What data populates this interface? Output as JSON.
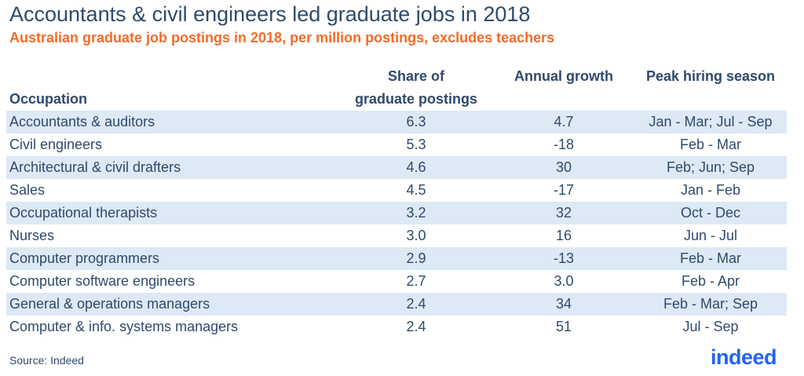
{
  "title": "Accountants & civil engineers led graduate jobs in 2018",
  "subtitle": "Australian graduate job postings in 2018, per million postings, excludes teachers",
  "source": "Source: Indeed",
  "logo": "indeed",
  "colors": {
    "title": "#2f4a6d",
    "subtitle": "#f26b2a",
    "band": "#dde9f5",
    "logo": "#2164f3"
  },
  "chart_data": {
    "type": "table",
    "columns": [
      "Occupation",
      "Share of graduate postings",
      "Annual growth",
      "Peak hiring season"
    ],
    "header_lines": {
      "share_1": "Share of",
      "share_2": "graduate postings"
    },
    "rows": [
      [
        "Accountants & auditors",
        "6.3",
        "4.7",
        "Jan - Mar; Jul - Sep"
      ],
      [
        "Civil engineers",
        "5.3",
        "-18",
        "Feb - Mar"
      ],
      [
        "Architectural & civil drafters",
        "4.6",
        "30",
        "Feb; Jun; Sep"
      ],
      [
        "Sales",
        "4.5",
        "-17",
        "Jan - Feb"
      ],
      [
        "Occupational therapists",
        "3.2",
        "32",
        "Oct - Dec"
      ],
      [
        "Nurses",
        "3.0",
        "16",
        "Jun - Jul"
      ],
      [
        "Computer programmers",
        "2.9",
        "-13",
        "Feb - Mar"
      ],
      [
        "Computer software engineers",
        "2.7",
        "3.0",
        "Feb - Apr"
      ],
      [
        "General & operations managers",
        "2.4",
        "34",
        "Feb - Mar; Sep"
      ],
      [
        "Computer & info. systems managers",
        "2.4",
        "51",
        "Jul - Sep"
      ]
    ]
  }
}
